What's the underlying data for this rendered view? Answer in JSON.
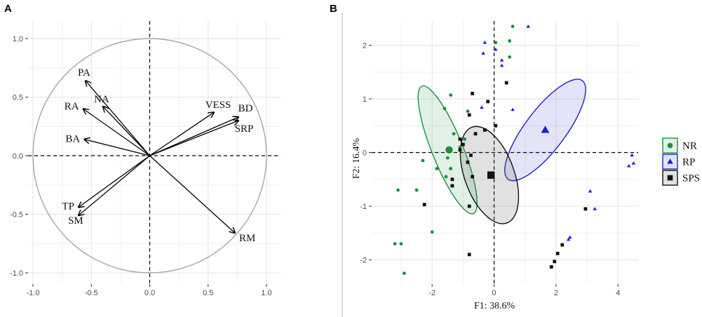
{
  "chart_data": [
    {
      "panel": "A",
      "type": "scatter",
      "subtype": "correlation-circle",
      "title": "",
      "xlim": [
        -1.0,
        1.0
      ],
      "ylim": [
        -1.0,
        1.0
      ],
      "xticks": [
        "-1.0",
        "-0.5",
        "0.0",
        "0.5",
        "1.0"
      ],
      "yticks": [
        "-1.0",
        "-0.5",
        "0.0",
        "0.5",
        "1.0"
      ],
      "grid": true,
      "vectors": [
        {
          "name": "PA",
          "x": -0.55,
          "y": 0.64
        },
        {
          "name": "NA",
          "x": -0.4,
          "y": 0.42
        },
        {
          "name": "RA",
          "x": -0.57,
          "y": 0.4
        },
        {
          "name": "BA",
          "x": -0.56,
          "y": 0.14
        },
        {
          "name": "VESS",
          "x": 0.55,
          "y": 0.37
        },
        {
          "name": "BD",
          "x": 0.76,
          "y": 0.33
        },
        {
          "name": "SRP",
          "x": 0.76,
          "y": 0.3
        },
        {
          "name": "TP",
          "x": -0.61,
          "y": -0.44
        },
        {
          "name": "SM",
          "x": -0.61,
          "y": -0.51
        },
        {
          "name": "RM",
          "x": 0.73,
          "y": -0.66
        }
      ]
    },
    {
      "panel": "B",
      "type": "scatter",
      "title": "",
      "xlabel": "F1: 38.6%",
      "ylabel": "F2: 16.4%",
      "xlim": [
        -3.95,
        4.65
      ],
      "ylim": [
        -2.45,
        2.45
      ],
      "xticks": [
        "-2",
        "0",
        "2",
        "4"
      ],
      "yticks": [
        "-2",
        "-1",
        "0",
        "1",
        "2"
      ],
      "grid": true,
      "legend_position": "right",
      "series": [
        {
          "name": "NR",
          "color": "#1a8f3c",
          "marker": "circle",
          "centroid": {
            "x": -1.45,
            "y": 0.05
          },
          "ellipse": {
            "cx": -1.5,
            "cy": 0.05,
            "rx": 0.5,
            "ry": 1.28,
            "angle_deg": -22
          },
          "points": [
            [
              0.6,
              2.35
            ],
            [
              0.5,
              2.08
            ],
            [
              0.05,
              2.05
            ],
            [
              0.5,
              1.78
            ],
            [
              -1.4,
              1.07
            ],
            [
              -1.6,
              0.82
            ],
            [
              -0.85,
              0.77
            ],
            [
              -1.3,
              0.35
            ],
            [
              -0.95,
              0.25
            ],
            [
              -1.1,
              0.1
            ],
            [
              -1.5,
              -0.1
            ],
            [
              -1.85,
              -0.3
            ],
            [
              -1.4,
              -0.3
            ],
            [
              -1.55,
              -0.45
            ],
            [
              -2.3,
              -0.15
            ],
            [
              -2.5,
              -0.7
            ],
            [
              -3.1,
              -0.7
            ],
            [
              -3.0,
              -1.7
            ],
            [
              -3.2,
              -1.7
            ],
            [
              -2.0,
              -1.48
            ],
            [
              -2.9,
              -2.25
            ]
          ]
        },
        {
          "name": "RP",
          "color": "#1f1fcc",
          "marker": "triangle",
          "centroid": {
            "x": 1.65,
            "y": 0.42
          },
          "ellipse": {
            "cx": 1.65,
            "cy": 0.42,
            "rx": 0.65,
            "ry": 1.15,
            "angle_deg": 37
          },
          "points": [
            [
              1.1,
              2.35
            ],
            [
              -0.3,
              2.05
            ],
            [
              0.05,
              1.92
            ],
            [
              -0.35,
              1.85
            ],
            [
              0.25,
              1.72
            ],
            [
              0.25,
              1.62
            ],
            [
              -0.4,
              0.84
            ],
            [
              0.6,
              0.8
            ],
            [
              4.45,
              -0.05
            ],
            [
              4.35,
              -0.25
            ],
            [
              4.5,
              -0.2
            ],
            [
              3.1,
              -0.72
            ],
            [
              3.25,
              -1.05
            ],
            [
              2.45,
              -1.58
            ],
            [
              2.4,
              -1.62
            ]
          ]
        },
        {
          "name": "SPS",
          "color": "#111111",
          "marker": "square",
          "centroid": {
            "x": -0.1,
            "y": -0.42
          },
          "ellipse": {
            "cx": -0.15,
            "cy": -0.42,
            "rx": 0.8,
            "ry": 0.95,
            "angle_deg": -20
          },
          "points": [
            [
              0.4,
              1.3
            ],
            [
              -0.7,
              1.1
            ],
            [
              -0.2,
              0.95
            ],
            [
              -0.8,
              0.7
            ],
            [
              -0.3,
              0.42
            ],
            [
              0.05,
              0.5
            ],
            [
              -0.6,
              0.35
            ],
            [
              -1.1,
              0.25
            ],
            [
              -1.0,
              0.15
            ],
            [
              -1.1,
              0.05
            ],
            [
              -0.75,
              -0.05
            ],
            [
              -0.85,
              -0.18
            ],
            [
              -1.35,
              -0.5
            ],
            [
              -1.35,
              -0.62
            ],
            [
              -0.7,
              -0.45
            ],
            [
              -2.25,
              -0.97
            ],
            [
              -0.8,
              -1.0
            ],
            [
              -0.8,
              -1.9
            ],
            [
              2.95,
              -1.05
            ],
            [
              2.2,
              -1.72
            ],
            [
              2.05,
              -1.88
            ],
            [
              1.95,
              -2.03
            ],
            [
              1.85,
              -2.13
            ]
          ]
        }
      ]
    }
  ],
  "panels": {
    "a": {
      "letter": "A"
    },
    "b": {
      "letter": "B"
    }
  },
  "legend": {
    "items": [
      {
        "label": "NR",
        "color": "#1a8f3c",
        "marker": "circle"
      },
      {
        "label": "RP",
        "color": "#1f1fcc",
        "marker": "triangle"
      },
      {
        "label": "SPS",
        "color": "#111111",
        "marker": "square"
      }
    ]
  }
}
